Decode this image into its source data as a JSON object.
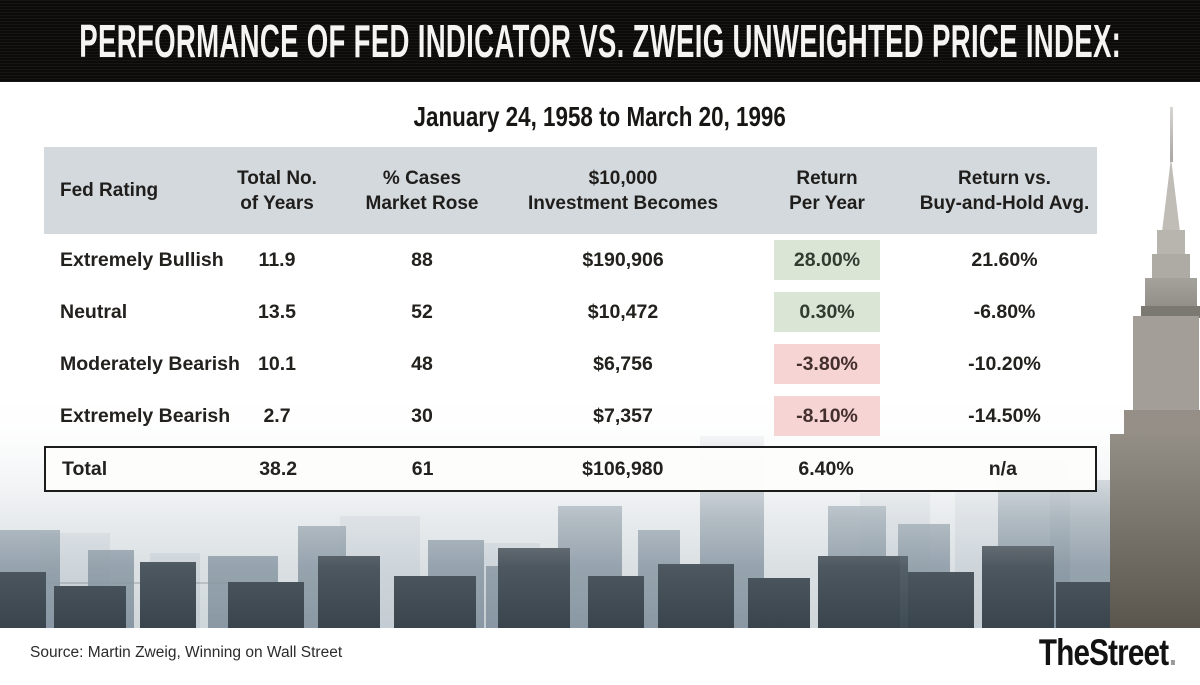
{
  "banner": {
    "title": "PERFORMANCE OF FED INDICATOR VS. ZWEIG UNWEIGHTED PRICE INDEX:"
  },
  "subtitle": "January 24, 1958 to March 20, 1996",
  "table": {
    "headers": [
      {
        "line1": "Fed Rating",
        "line2": ""
      },
      {
        "line1": "Total No.",
        "line2": "of Years"
      },
      {
        "line1": "% Cases",
        "line2": "Market Rose"
      },
      {
        "line1": "$10,000",
        "line2": "Investment Becomes"
      },
      {
        "line1": "Return",
        "line2": "Per Year"
      },
      {
        "line1": "Return vs.",
        "line2": "Buy-and-Hold Avg."
      }
    ],
    "rows": [
      {
        "rating": "Extremely Bullish",
        "years": "11.9",
        "cases": "88",
        "investment": "$190,906",
        "return": "28.00%",
        "tone": "positive",
        "vs": "21.60%"
      },
      {
        "rating": "Neutral",
        "years": "13.5",
        "cases": "52",
        "investment": "$10,472",
        "return": "0.30%",
        "tone": "positive",
        "vs": "-6.80%"
      },
      {
        "rating": "Moderately Bearish",
        "years": "10.1",
        "cases": "48",
        "investment": "$6,756",
        "return": "-3.80%",
        "tone": "negative",
        "vs": "-10.20%"
      },
      {
        "rating": "Extremely Bearish",
        "years": "2.7",
        "cases": "30",
        "investment": "$7,357",
        "return": "-8.10%",
        "tone": "negative",
        "vs": "-14.50%"
      }
    ],
    "total": {
      "rating": "Total",
      "years": "38.2",
      "cases": "61",
      "investment": "$106,980",
      "return": "6.40%",
      "vs": "n/a"
    }
  },
  "footer": {
    "source": "Source: Martin Zweig, Winning on Wall Street",
    "brand": "TheStreet"
  },
  "colors": {
    "banner_bg": "#0c0b0a",
    "header_band": "#d3d9dc",
    "positive_bg": "#dbe5d6",
    "negative_bg": "#f6d4d4"
  },
  "chart_data": {
    "type": "table",
    "title": "PERFORMANCE OF FED INDICATOR VS. ZWEIG UNWEIGHTED PRICE INDEX:",
    "subtitle": "January 24, 1958 to March 20, 1996",
    "columns": [
      "Fed Rating",
      "Total No. of Years",
      "% Cases Market Rose",
      "$10,000 Investment Becomes",
      "Return Per Year",
      "Return vs. Buy-and-Hold Avg."
    ],
    "rows": [
      [
        "Extremely Bullish",
        11.9,
        88,
        "$190,906",
        "28.00%",
        "21.60%"
      ],
      [
        "Neutral",
        13.5,
        52,
        "$10,472",
        "0.30%",
        "-6.80%"
      ],
      [
        "Moderately Bearish",
        10.1,
        48,
        "$6,756",
        "-3.80%",
        "-10.20%"
      ],
      [
        "Extremely Bearish",
        2.7,
        30,
        "$7,357",
        "-8.10%",
        "-14.50%"
      ],
      [
        "Total",
        38.2,
        61,
        "$106,980",
        "6.40%",
        "n/a"
      ]
    ],
    "highlights": {
      "positive_return_rows": [
        0,
        1
      ],
      "negative_return_rows": [
        2,
        3
      ]
    },
    "source": "Source: Martin Zweig, Winning on Wall Street"
  }
}
